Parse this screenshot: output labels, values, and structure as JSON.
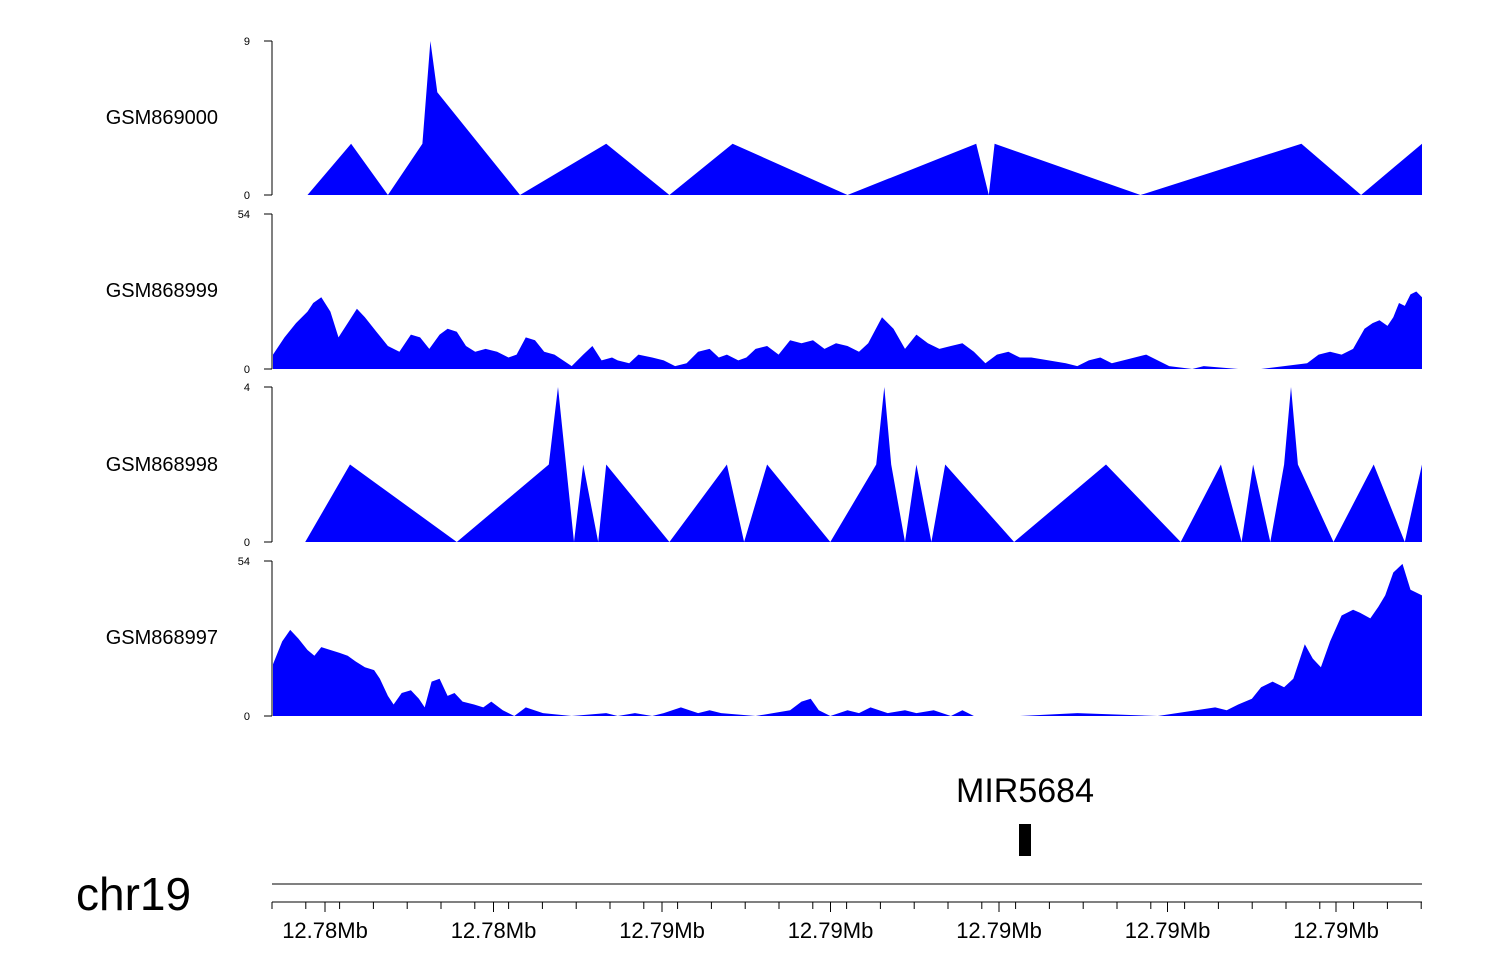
{
  "chart_data": {
    "type": "area",
    "fill_color": "#0000ff",
    "chromosome": "chr19",
    "x_tick_labels": [
      "12.78Mb",
      "12.78Mb",
      "12.79Mb",
      "12.79Mb",
      "12.79Mb",
      "12.79Mb",
      "12.79Mb"
    ],
    "gene": {
      "name": "MIR5684"
    },
    "tracks": [
      {
        "name": "GSM869000",
        "ylim": [
          0,
          9
        ],
        "yticks": [
          "0",
          "9"
        ],
        "points": [
          [
            0.03,
            0
          ],
          [
            0.068,
            3
          ],
          [
            0.1,
            0
          ],
          [
            0.13,
            3
          ],
          [
            0.137,
            9
          ],
          [
            0.143,
            6
          ],
          [
            0.215,
            0
          ],
          [
            0.29,
            3
          ],
          [
            0.345,
            0
          ],
          [
            0.4,
            3
          ],
          [
            0.5,
            0
          ],
          [
            0.612,
            3
          ],
          [
            0.623,
            0
          ],
          [
            0.628,
            3
          ],
          [
            0.755,
            0
          ],
          [
            0.895,
            3
          ],
          [
            0.947,
            0
          ],
          [
            1.0,
            3
          ]
        ]
      },
      {
        "name": "GSM868999",
        "ylim": [
          0,
          54
        ],
        "yticks": [
          "0",
          "54"
        ],
        "points": [
          [
            0.0,
            5
          ],
          [
            0.01,
            11
          ],
          [
            0.02,
            16
          ],
          [
            0.03,
            20
          ],
          [
            0.035,
            23
          ],
          [
            0.042,
            25
          ],
          [
            0.05,
            20
          ],
          [
            0.057,
            11
          ],
          [
            0.065,
            16
          ],
          [
            0.073,
            21
          ],
          [
            0.08,
            18
          ],
          [
            0.09,
            13
          ],
          [
            0.1,
            8
          ],
          [
            0.11,
            6
          ],
          [
            0.12,
            12
          ],
          [
            0.128,
            11
          ],
          [
            0.136,
            7
          ],
          [
            0.145,
            12
          ],
          [
            0.152,
            14
          ],
          [
            0.16,
            13
          ],
          [
            0.168,
            8
          ],
          [
            0.176,
            6
          ],
          [
            0.185,
            7
          ],
          [
            0.195,
            6
          ],
          [
            0.205,
            4
          ],
          [
            0.212,
            5
          ],
          [
            0.22,
            11
          ],
          [
            0.228,
            10
          ],
          [
            0.236,
            6
          ],
          [
            0.245,
            5
          ],
          [
            0.26,
            1
          ],
          [
            0.27,
            5
          ],
          [
            0.278,
            8
          ],
          [
            0.286,
            3
          ],
          [
            0.295,
            4
          ],
          [
            0.3,
            3
          ],
          [
            0.31,
            2
          ],
          [
            0.318,
            5
          ],
          [
            0.33,
            4
          ],
          [
            0.34,
            3
          ],
          [
            0.35,
            1
          ],
          [
            0.36,
            2
          ],
          [
            0.37,
            6
          ],
          [
            0.38,
            7
          ],
          [
            0.388,
            4
          ],
          [
            0.395,
            5
          ],
          [
            0.405,
            3
          ],
          [
            0.412,
            4
          ],
          [
            0.42,
            7
          ],
          [
            0.43,
            8
          ],
          [
            0.44,
            5
          ],
          [
            0.45,
            10
          ],
          [
            0.46,
            9
          ],
          [
            0.47,
            10
          ],
          [
            0.48,
            7
          ],
          [
            0.49,
            9
          ],
          [
            0.5,
            8
          ],
          [
            0.51,
            6
          ],
          [
            0.518,
            9
          ],
          [
            0.53,
            18
          ],
          [
            0.54,
            14
          ],
          [
            0.55,
            7
          ],
          [
            0.56,
            12
          ],
          [
            0.57,
            9
          ],
          [
            0.58,
            7
          ],
          [
            0.59,
            8
          ],
          [
            0.6,
            9
          ],
          [
            0.61,
            6
          ],
          [
            0.62,
            2
          ],
          [
            0.63,
            5
          ],
          [
            0.64,
            6
          ],
          [
            0.65,
            4
          ],
          [
            0.66,
            4
          ],
          [
            0.675,
            3
          ],
          [
            0.69,
            2
          ],
          [
            0.7,
            1
          ],
          [
            0.71,
            3
          ],
          [
            0.72,
            4
          ],
          [
            0.73,
            2
          ],
          [
            0.74,
            3
          ],
          [
            0.76,
            5
          ],
          [
            0.77,
            3
          ],
          [
            0.78,
            1
          ],
          [
            0.8,
            0
          ],
          [
            0.81,
            1
          ],
          [
            0.84,
            0
          ],
          [
            0.86,
            0
          ],
          [
            0.88,
            1
          ],
          [
            0.9,
            2
          ],
          [
            0.91,
            5
          ],
          [
            0.92,
            6
          ],
          [
            0.93,
            5
          ],
          [
            0.94,
            7
          ],
          [
            0.95,
            14
          ],
          [
            0.957,
            16
          ],
          [
            0.963,
            17
          ],
          [
            0.97,
            15
          ],
          [
            0.975,
            18
          ],
          [
            0.98,
            23
          ],
          [
            0.985,
            22
          ],
          [
            0.99,
            26
          ],
          [
            0.995,
            27
          ],
          [
            1.0,
            25
          ]
        ]
      },
      {
        "name": "GSM868998",
        "ylim": [
          0,
          4
        ],
        "yticks": [
          "0",
          "4"
        ],
        "points": [
          [
            0.028,
            0
          ],
          [
            0.067,
            2
          ],
          [
            0.16,
            0
          ],
          [
            0.24,
            2
          ],
          [
            0.248,
            4
          ],
          [
            0.262,
            0
          ],
          [
            0.27,
            2
          ],
          [
            0.283,
            0
          ],
          [
            0.29,
            2
          ],
          [
            0.345,
            0
          ],
          [
            0.395,
            2
          ],
          [
            0.41,
            0
          ],
          [
            0.43,
            2
          ],
          [
            0.485,
            0
          ],
          [
            0.525,
            2
          ],
          [
            0.532,
            4
          ],
          [
            0.538,
            2
          ],
          [
            0.55,
            0
          ],
          [
            0.56,
            2
          ],
          [
            0.573,
            0
          ],
          [
            0.585,
            2
          ],
          [
            0.645,
            0
          ],
          [
            0.725,
            2
          ],
          [
            0.79,
            0
          ],
          [
            0.825,
            2
          ],
          [
            0.843,
            0
          ],
          [
            0.853,
            2
          ],
          [
            0.868,
            0
          ],
          [
            0.88,
            2
          ],
          [
            0.886,
            4
          ],
          [
            0.892,
            2
          ],
          [
            0.923,
            0
          ],
          [
            0.958,
            2
          ],
          [
            0.985,
            0
          ],
          [
            1.0,
            2
          ]
        ]
      },
      {
        "name": "GSM868997",
        "ylim": [
          0,
          54
        ],
        "yticks": [
          "0",
          "54"
        ],
        "points": [
          [
            0.0,
            18
          ],
          [
            0.008,
            26
          ],
          [
            0.015,
            30
          ],
          [
            0.022,
            27
          ],
          [
            0.03,
            23
          ],
          [
            0.036,
            21
          ],
          [
            0.042,
            24
          ],
          [
            0.05,
            23
          ],
          [
            0.058,
            22
          ],
          [
            0.065,
            21
          ],
          [
            0.072,
            19
          ],
          [
            0.08,
            17
          ],
          [
            0.088,
            16
          ],
          [
            0.093,
            13
          ],
          [
            0.1,
            7
          ],
          [
            0.105,
            4
          ],
          [
            0.112,
            8
          ],
          [
            0.12,
            9
          ],
          [
            0.127,
            6
          ],
          [
            0.132,
            3
          ],
          [
            0.138,
            12
          ],
          [
            0.145,
            13
          ],
          [
            0.152,
            7
          ],
          [
            0.158,
            8
          ],
          [
            0.165,
            5
          ],
          [
            0.175,
            4
          ],
          [
            0.183,
            3
          ],
          [
            0.19,
            5
          ],
          [
            0.2,
            2
          ],
          [
            0.21,
            0
          ],
          [
            0.22,
            3
          ],
          [
            0.235,
            1
          ],
          [
            0.26,
            0
          ],
          [
            0.29,
            1
          ],
          [
            0.3,
            0
          ],
          [
            0.315,
            1
          ],
          [
            0.33,
            0
          ],
          [
            0.34,
            1
          ],
          [
            0.355,
            3
          ],
          [
            0.37,
            1
          ],
          [
            0.38,
            2
          ],
          [
            0.39,
            1
          ],
          [
            0.42,
            0
          ],
          [
            0.45,
            2
          ],
          [
            0.46,
            5
          ],
          [
            0.468,
            6
          ],
          [
            0.475,
            2
          ],
          [
            0.485,
            0
          ],
          [
            0.5,
            2
          ],
          [
            0.51,
            1
          ],
          [
            0.52,
            3
          ],
          [
            0.535,
            1
          ],
          [
            0.55,
            2
          ],
          [
            0.56,
            1
          ],
          [
            0.575,
            2
          ],
          [
            0.59,
            0
          ],
          [
            0.6,
            2
          ],
          [
            0.61,
            0
          ],
          [
            0.65,
            0
          ],
          [
            0.7,
            1
          ],
          [
            0.77,
            0
          ],
          [
            0.82,
            3
          ],
          [
            0.83,
            2
          ],
          [
            0.84,
            4
          ],
          [
            0.852,
            6
          ],
          [
            0.86,
            10
          ],
          [
            0.87,
            12
          ],
          [
            0.88,
            10
          ],
          [
            0.888,
            13
          ],
          [
            0.898,
            25
          ],
          [
            0.905,
            20
          ],
          [
            0.912,
            17
          ],
          [
            0.92,
            26
          ],
          [
            0.93,
            35
          ],
          [
            0.94,
            37
          ],
          [
            0.946,
            36
          ],
          [
            0.955,
            34
          ],
          [
            0.962,
            38
          ],
          [
            0.968,
            42
          ],
          [
            0.975,
            50
          ],
          [
            0.983,
            53
          ],
          [
            0.99,
            44
          ],
          [
            1.0,
            42
          ]
        ]
      }
    ]
  }
}
